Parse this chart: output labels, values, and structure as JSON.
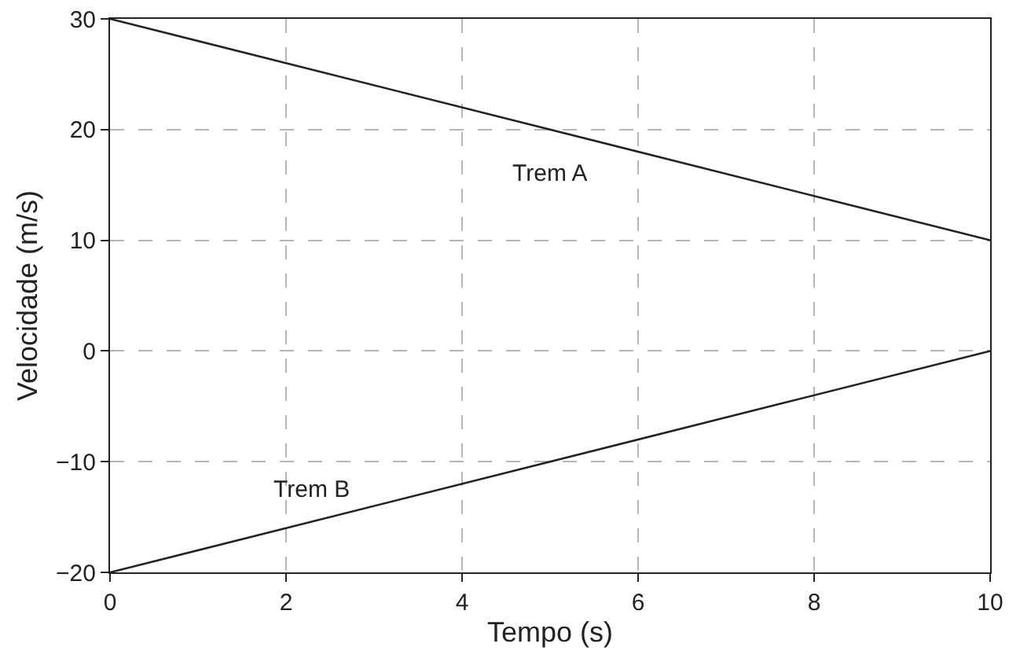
{
  "chart_data": {
    "type": "line",
    "xlabel": "Tempo (s)",
    "ylabel": "Velocidade (m/s)",
    "x": [
      0,
      10
    ],
    "series": [
      {
        "name": "Trem A",
        "color": "#222222",
        "values": [
          30,
          10
        ]
      },
      {
        "name": "Trem B",
        "color": "#222222",
        "values": [
          -20,
          0
        ]
      }
    ],
    "xlim": [
      0,
      10
    ],
    "xticks": [
      0,
      2,
      4,
      6,
      8,
      10
    ],
    "ylim": [
      -20,
      30
    ],
    "yticks": [
      -20,
      -10,
      0,
      10,
      20,
      30
    ],
    "grid": true,
    "legend": false,
    "marker": "none",
    "line_style": "solid"
  }
}
